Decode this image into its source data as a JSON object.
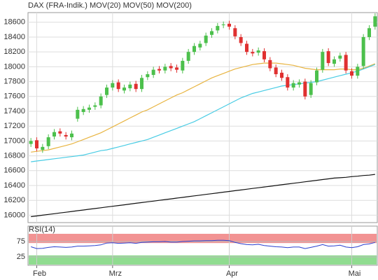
{
  "chart_data": [
    {
      "type": "candlestick",
      "xticks": [
        {
          "value": 1,
          "label": "Feb"
        },
        {
          "value": 14,
          "label": "Mrz"
        },
        {
          "value": 34,
          "label": "Apr"
        },
        {
          "value": 55,
          "label": "Mai"
        }
      ],
      "ylim": [
        15900,
        18730
      ],
      "yticks": [
        16000,
        16200,
        16400,
        16600,
        16800,
        17000,
        17200,
        17400,
        17600,
        17800,
        18000,
        18200,
        18400,
        18600
      ],
      "grid": true,
      "candles": {
        "name": "DAX (FRA-Indik.)",
        "color": "#e06a6a",
        "up_color": "#4cc04c",
        "down_color": "#e03030",
        "open": [
          16960,
          17010,
          16880,
          16930,
          17060,
          17130,
          17080,
          17050,
          17300,
          17390,
          17420,
          17460,
          17480,
          17620,
          17720,
          17790,
          17680,
          17710,
          17770,
          17700,
          17860,
          17890,
          17970,
          17950,
          18010,
          17990,
          17950,
          18080,
          18200,
          18260,
          18320,
          18430,
          18490,
          18560,
          18580,
          18520,
          18400,
          18310,
          18200,
          18190,
          18210,
          18090,
          17990,
          17920,
          17860,
          17720,
          17760,
          17800,
          17620,
          17790,
          17960,
          18210,
          18040,
          18110,
          18160,
          17940,
          17880,
          18010,
          18400,
          18540
        ],
        "high": [
          17040,
          17050,
          16960,
          17090,
          17160,
          17170,
          17120,
          17140,
          17460,
          17470,
          17490,
          17520,
          17640,
          17760,
          17820,
          17830,
          17760,
          17800,
          17810,
          17890,
          17940,
          18000,
          18010,
          18040,
          18050,
          18030,
          18120,
          18240,
          18320,
          18350,
          18460,
          18520,
          18590,
          18610,
          18620,
          18560,
          18440,
          18350,
          18240,
          18260,
          18250,
          18130,
          18030,
          17960,
          17900,
          17820,
          17830,
          17840,
          17820,
          17990,
          18240,
          18250,
          18140,
          18190,
          18200,
          17980,
          18040,
          18440,
          18560,
          18720
        ],
        "low": [
          16920,
          16860,
          16840,
          16890,
          17020,
          17060,
          17020,
          17010,
          17260,
          17350,
          17380,
          17420,
          17440,
          17580,
          17680,
          17660,
          17640,
          17670,
          17660,
          17660,
          17820,
          17850,
          17910,
          17910,
          17940,
          17920,
          17910,
          18040,
          18160,
          18220,
          18280,
          18390,
          18450,
          18520,
          18500,
          18370,
          18280,
          18160,
          18140,
          18150,
          18060,
          17940,
          17860,
          17810,
          17680,
          17680,
          17720,
          17560,
          17580,
          17750,
          17920,
          18010,
          18000,
          18070,
          17910,
          17840,
          17840,
          17970,
          18360,
          18500
        ],
        "close": [
          17000,
          16900,
          16920,
          17050,
          17120,
          17100,
          17060,
          17100,
          17420,
          17430,
          17450,
          17480,
          17600,
          17720,
          17780,
          17700,
          17720,
          17760,
          17700,
          17850,
          17900,
          17960,
          17950,
          18000,
          17980,
          17960,
          18080,
          18200,
          18280,
          18310,
          18420,
          18480,
          18550,
          18570,
          18540,
          18410,
          18320,
          18200,
          18180,
          18220,
          18100,
          17980,
          17900,
          17850,
          17720,
          17780,
          17790,
          17600,
          17780,
          17950,
          18200,
          18050,
          18100,
          18150,
          17950,
          17880,
          18000,
          18400,
          18520,
          18680
        ]
      },
      "series": [
        {
          "name": "MOV(20)",
          "color": "#e8b440",
          "values": [
            16850,
            16860,
            16870,
            16880,
            16900,
            16920,
            16940,
            16960,
            16990,
            17020,
            17050,
            17080,
            17110,
            17150,
            17190,
            17230,
            17270,
            17310,
            17350,
            17390,
            17420,
            17460,
            17500,
            17540,
            17580,
            17620,
            17650,
            17690,
            17730,
            17770,
            17810,
            17850,
            17880,
            17910,
            17940,
            17970,
            17990,
            18010,
            18030,
            18040,
            18050,
            18050,
            18050,
            18040,
            18030,
            18020,
            18000,
            17980,
            17970,
            17960,
            17960,
            17960,
            17960,
            17970,
            17970,
            17960,
            17960,
            17980,
            18010,
            18040
          ]
        },
        {
          "name": "MOV(50)",
          "color": "#48cce4",
          "values": [
            16720,
            16730,
            16740,
            16750,
            16760,
            16770,
            16780,
            16790,
            16800,
            16810,
            16830,
            16850,
            16870,
            16880,
            16900,
            16920,
            16940,
            16960,
            16980,
            17000,
            17020,
            17050,
            17080,
            17110,
            17140,
            17170,
            17200,
            17230,
            17260,
            17300,
            17340,
            17380,
            17420,
            17460,
            17500,
            17540,
            17580,
            17610,
            17640,
            17660,
            17680,
            17700,
            17720,
            17740,
            17750,
            17760,
            17770,
            17780,
            17790,
            17800,
            17820,
            17840,
            17860,
            17880,
            17900,
            17920,
            17940,
            17970,
            18000,
            18030
          ]
        },
        {
          "name": "MOV(200)",
          "color": "#111111",
          "values": [
            15980,
            15990,
            16000,
            16010,
            16020,
            16030,
            16040,
            16050,
            16060,
            16070,
            16080,
            16090,
            16100,
            16110,
            16120,
            16130,
            16140,
            16150,
            16160,
            16170,
            16180,
            16190,
            16200,
            16210,
            16220,
            16230,
            16240,
            16250,
            16260,
            16270,
            16280,
            16290,
            16300,
            16310,
            16320,
            16330,
            16340,
            16350,
            16360,
            16370,
            16380,
            16390,
            16400,
            16410,
            16420,
            16430,
            16440,
            16450,
            16460,
            16470,
            16480,
            16490,
            16500,
            16505,
            16510,
            16520,
            16525,
            16535,
            16540,
            16550
          ]
        }
      ]
    },
    {
      "type": "line",
      "title": "RSI(14)",
      "ylim": [
        0,
        100
      ],
      "yticks": [
        25,
        75
      ],
      "bands": [
        {
          "range": [
            70,
            100
          ],
          "color": "#f08080"
        },
        {
          "range": [
            0,
            30
          ],
          "color": "#7cd67c"
        }
      ],
      "series": [
        {
          "color": "#2a3fd0",
          "values": [
            58,
            52,
            53,
            56,
            58,
            57,
            56,
            57,
            60,
            60,
            61,
            62,
            64,
            70,
            71,
            69,
            70,
            71,
            69,
            72,
            73,
            74,
            74,
            75,
            73,
            73,
            75,
            76,
            77,
            77,
            78,
            78,
            79,
            79,
            78,
            72,
            68,
            65,
            64,
            66,
            62,
            60,
            58,
            57,
            55,
            57,
            57,
            52,
            56,
            60,
            65,
            60,
            61,
            63,
            57,
            55,
            58,
            65,
            67,
            72
          ]
        }
      ]
    }
  ]
}
